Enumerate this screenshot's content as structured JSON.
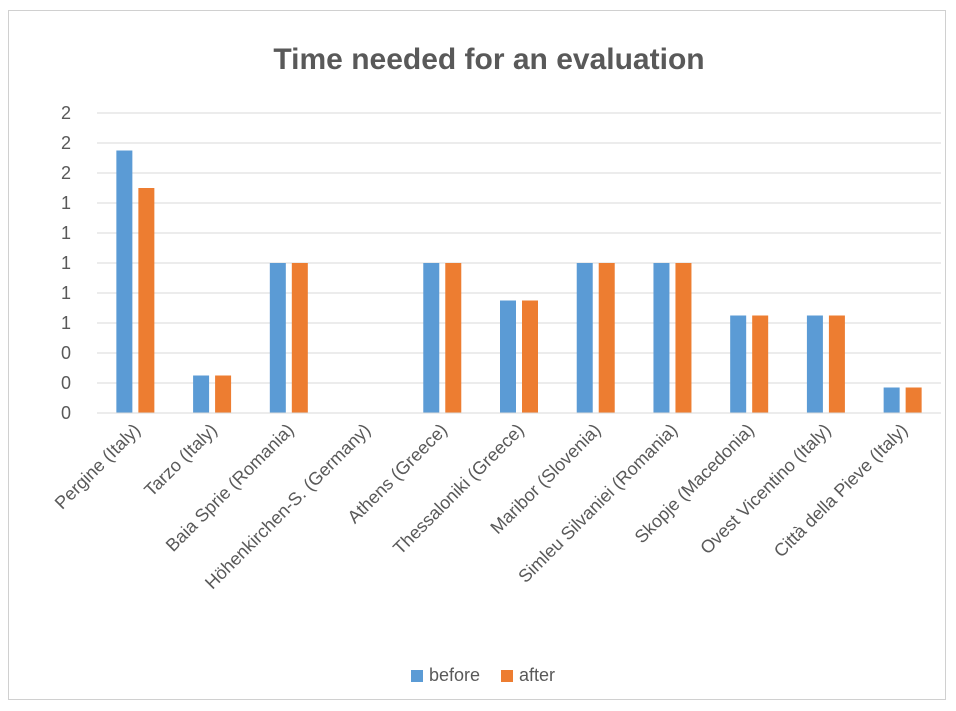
{
  "chart_data": {
    "type": "bar",
    "title": "Time needed for an evaluation",
    "xlabel": "",
    "ylabel": "",
    "categories": [
      "Pergine (Italy)",
      "Tarzo (Italy)",
      "Baia Sprie (Romania)",
      "Höhenkirchen-S. (Germany)",
      "Athens (Greece)",
      "Thessaloniki (Greece)",
      "Maribor (Slovenia)",
      "Simleu Silvaniei (Romania)",
      "Skopje (Macedonia)",
      "Ovest Vicentino (Italy)",
      "Città della Pieve (Italy)"
    ],
    "series": [
      {
        "name": "before",
        "color": "#5b9bd5",
        "values": [
          1.75,
          0.25,
          1.0,
          0,
          1.0,
          0.75,
          1.0,
          1.0,
          0.65,
          0.65,
          0.17
        ]
      },
      {
        "name": "after",
        "color": "#ed7d31",
        "values": [
          1.5,
          0.25,
          1.0,
          0,
          1.0,
          0.75,
          1.0,
          1.0,
          0.65,
          0.65,
          0.17
        ]
      }
    ],
    "ylim": [
      0,
      2.0
    ],
    "yticks": [
      "0",
      "0",
      "0",
      "1",
      "1",
      "1",
      "1",
      "1",
      "2",
      "2",
      "2"
    ],
    "grid": true,
    "legend_position": "bottom"
  }
}
